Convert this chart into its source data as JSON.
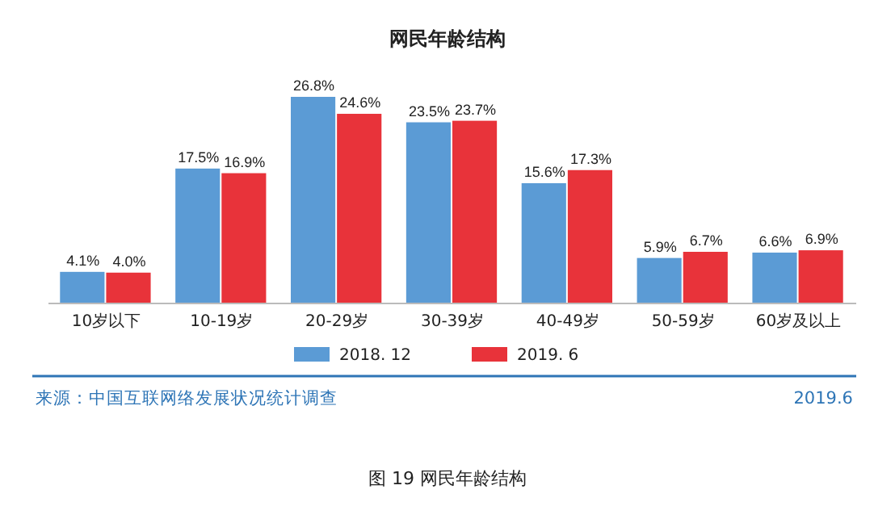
{
  "chart_data": {
    "type": "bar",
    "title": "网民年龄结构",
    "categories": [
      "10岁以下",
      "10-19岁",
      "20-29岁",
      "30-39岁",
      "40-49岁",
      "50-59岁",
      "60岁及以上"
    ],
    "series": [
      {
        "name": "2018. 12",
        "color": "#5b9bd5",
        "values": [
          4.1,
          17.5,
          26.8,
          23.5,
          15.6,
          5.9,
          6.6
        ],
        "value_labels": [
          "4.1%",
          "17.5%",
          "26.8%",
          "23.5%",
          "15.6%",
          "5.9%",
          "6.6%"
        ]
      },
      {
        "name": "2019. 6",
        "color": "#e8333a",
        "values": [
          4.0,
          16.9,
          24.6,
          23.7,
          17.3,
          6.7,
          6.9
        ],
        "value_labels": [
          "4.0%",
          "16.9%",
          "24.6%",
          "23.7%",
          "17.3%",
          "6.7%",
          "6.9%"
        ]
      }
    ],
    "legend": "bottom",
    "annotations": [
      "来源：中国互联网络发展状况统计调查",
      "2019.6",
      "图 19 网民年龄结构"
    ]
  }
}
